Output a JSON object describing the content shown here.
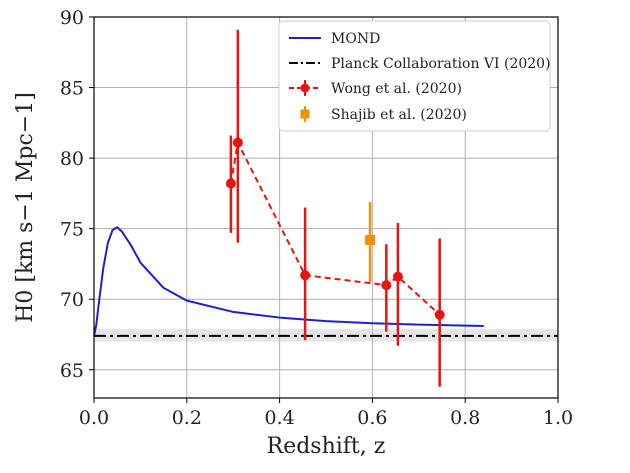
{
  "chart_data": {
    "type": "line",
    "xlabel": "Redshift, z",
    "ylabel": "H0 [km s−1 Mpc−1]",
    "xlim": [
      0.0,
      1.0
    ],
    "ylim": [
      63,
      90
    ],
    "xticks": [
      "0.0",
      "0.2",
      "0.4",
      "0.6",
      "0.8",
      "1.0"
    ],
    "yticks": [
      "65",
      "70",
      "75",
      "80",
      "85",
      "90"
    ],
    "grid": true,
    "legend_position": "top-right",
    "colors": {
      "mond": "#1f1fd0",
      "planck": "#000000",
      "wong": "#e8140f",
      "shajib": "#f0900a",
      "band": "#e6e6e6"
    },
    "series": [
      {
        "name": "MOND",
        "style": "solid-line",
        "x": [
          0.0,
          0.005,
          0.01,
          0.02,
          0.03,
          0.04,
          0.05,
          0.06,
          0.08,
          0.1,
          0.15,
          0.2,
          0.3,
          0.4,
          0.5,
          0.6,
          0.7,
          0.84
        ],
        "y": [
          67.4,
          68.2,
          69.6,
          72.2,
          74.0,
          74.9,
          75.1,
          74.8,
          73.8,
          72.6,
          70.8,
          69.9,
          69.1,
          68.7,
          68.45,
          68.3,
          68.2,
          68.1
        ]
      },
      {
        "name": "Planck Collaboration VI (2020)",
        "style": "dash-dot",
        "value": 67.4,
        "band": [
          67.0,
          67.9
        ]
      },
      {
        "name": "Wong et al. (2020)",
        "style": "dashed-markers",
        "x": [
          0.295,
          0.31,
          0.455,
          0.63,
          0.655,
          0.745
        ],
        "y": [
          78.2,
          81.1,
          71.7,
          71.0,
          71.6,
          68.9
        ],
        "err_low": [
          3.5,
          7.1,
          4.6,
          3.3,
          4.9,
          5.1
        ],
        "err_high": [
          3.4,
          8.0,
          4.8,
          2.9,
          3.8,
          5.4
        ]
      },
      {
        "name": "Shajib et al. (2020)",
        "style": "square-marker",
        "x": [
          0.595
        ],
        "y": [
          74.2
        ],
        "err_low": [
          3.0
        ],
        "err_high": [
          2.7
        ]
      }
    ]
  }
}
